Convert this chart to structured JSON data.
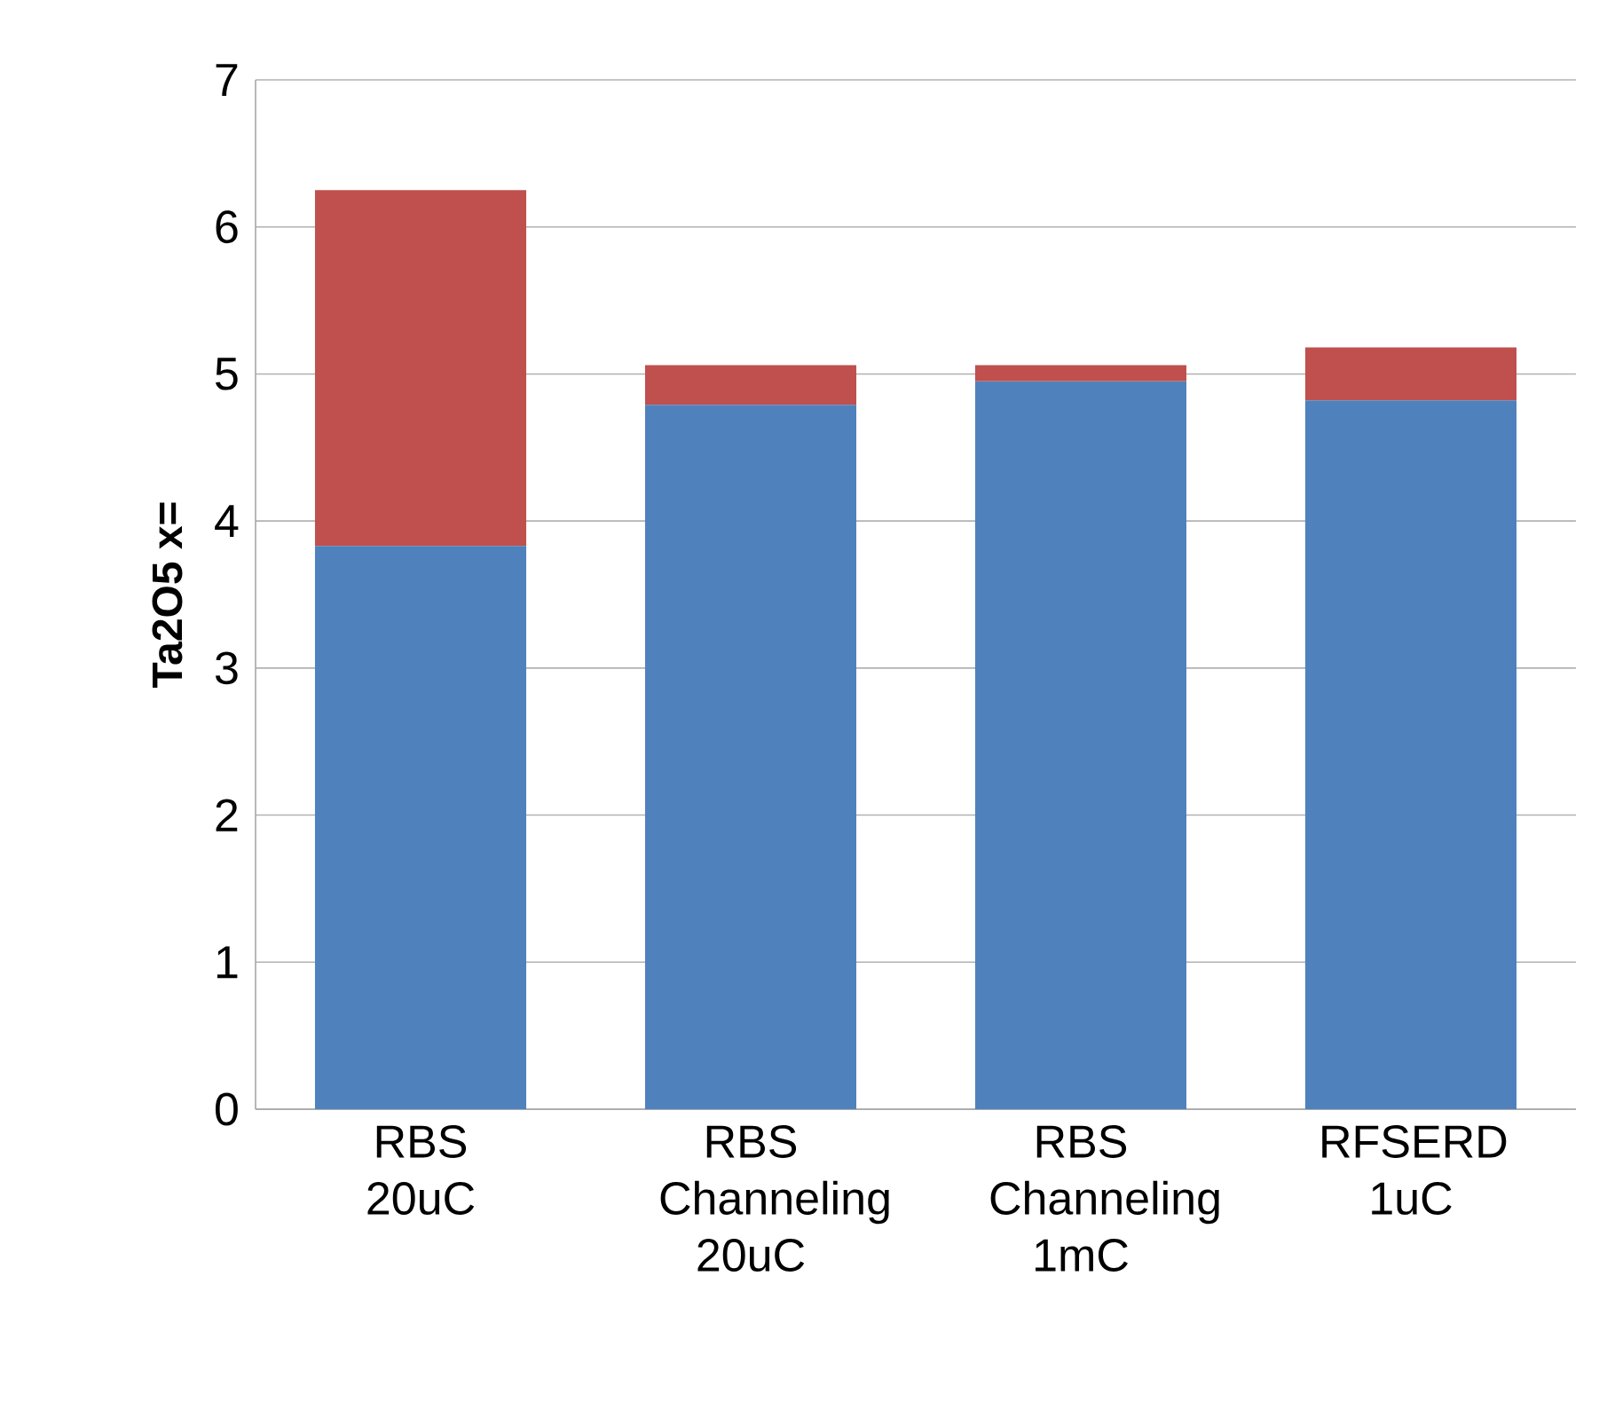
{
  "chart_data": {
    "type": "bar",
    "stacked": true,
    "ylabel": "Ta2O5  x=",
    "categories": [
      "RBS 20uC",
      "RBS Channeling 20uC",
      "RBS Channeling 1mC",
      "RFSERD 1uC"
    ],
    "series": [
      {
        "color": "#4f81bd",
        "values": [
          3.83,
          4.79,
          4.95,
          4.82
        ]
      },
      {
        "color": "#c0504d",
        "values": [
          2.42,
          0.27,
          0.11,
          0.36
        ]
      }
    ],
    "ylim": [
      0,
      7
    ],
    "yticks": [
      0,
      1,
      2,
      3,
      4,
      5,
      6,
      7
    ],
    "grid": "y"
  }
}
